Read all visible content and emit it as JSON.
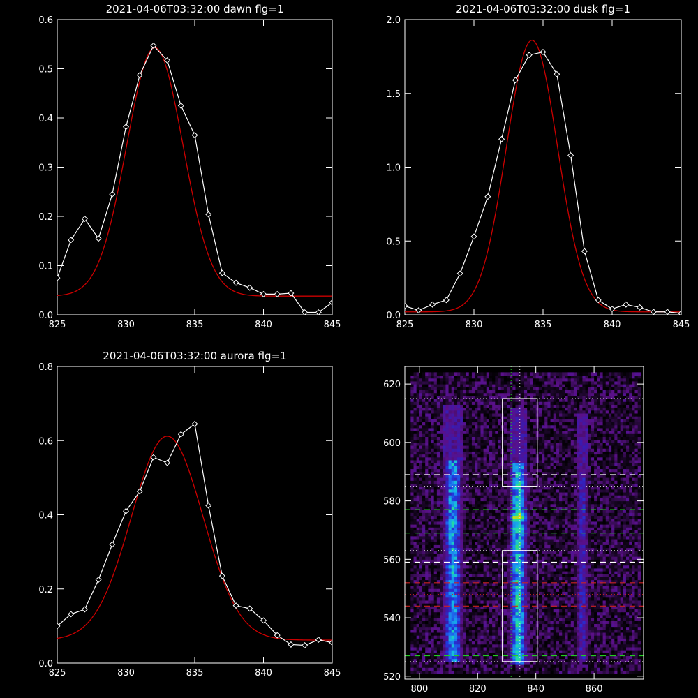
{
  "chart_data": [
    {
      "id": "dawn",
      "type": "line",
      "title": "2021-04-06T03:32:00 dawn flg=1",
      "xlabel": "",
      "ylabel": "",
      "xlim": [
        825,
        845
      ],
      "ylim": [
        0,
        0.6
      ],
      "xticks": [
        825,
        830,
        835,
        840,
        845
      ],
      "xtick_labels": [
        "825",
        "830",
        "835",
        "840",
        "845"
      ],
      "yticks": [
        0,
        0.1,
        0.2,
        0.3,
        0.4,
        0.5,
        0.6
      ],
      "ytick_labels": [
        "0.0",
        "0.1",
        "0.2",
        "0.3",
        "0.4",
        "0.5",
        "0.6"
      ],
      "series": [
        {
          "role": "data",
          "color": "#ffffff",
          "marker": "diamond",
          "x": [
            825,
            826,
            827,
            828,
            829,
            830,
            831,
            832,
            833,
            834,
            835,
            836,
            837,
            838,
            839,
            840,
            841,
            842,
            843,
            844,
            845
          ],
          "y": [
            0.075,
            0.152,
            0.195,
            0.155,
            0.245,
            0.382,
            0.487,
            0.547,
            0.517,
            0.425,
            0.365,
            0.204,
            0.085,
            0.065,
            0.055,
            0.042,
            0.042,
            0.044,
            0.005,
            0.005,
            0.025
          ]
        },
        {
          "role": "fit",
          "color": "#cc0000",
          "gauss": {
            "amp": 0.505,
            "center": 832.1,
            "sigma": 2.05,
            "base": 0.038
          }
        }
      ]
    },
    {
      "id": "dusk",
      "type": "line",
      "title": "2021-04-06T03:32:00 dusk flg=1",
      "xlabel": "",
      "ylabel": "",
      "xlim": [
        825,
        845
      ],
      "ylim": [
        0,
        2.0
      ],
      "xticks": [
        825,
        830,
        835,
        840,
        845
      ],
      "xtick_labels": [
        "825",
        "830",
        "835",
        "840",
        "845"
      ],
      "yticks": [
        0,
        0.5,
        1.0,
        1.5,
        2.0
      ],
      "ytick_labels": [
        "0.0",
        "0.5",
        "1.0",
        "1.5",
        "2.0"
      ],
      "series": [
        {
          "role": "data",
          "color": "#ffffff",
          "marker": "diamond",
          "x": [
            825,
            826,
            827,
            828,
            829,
            830,
            831,
            832,
            833,
            834,
            835,
            836,
            837,
            838,
            839,
            840,
            841,
            842,
            843,
            844,
            845
          ],
          "y": [
            0.06,
            0.03,
            0.07,
            0.1,
            0.28,
            0.53,
            0.8,
            1.19,
            1.59,
            1.76,
            1.78,
            1.63,
            1.08,
            0.43,
            0.1,
            0.04,
            0.07,
            0.05,
            0.02,
            0.02,
            0.01
          ]
        },
        {
          "role": "fit",
          "color": "#cc0000",
          "gauss": {
            "amp": 1.84,
            "center": 834.2,
            "sigma": 1.85,
            "base": 0.02
          }
        }
      ]
    },
    {
      "id": "aurora",
      "type": "line",
      "title": "2021-04-06T03:32:00 aurora flg=1",
      "xlabel": "",
      "ylabel": "",
      "xlim": [
        825,
        845
      ],
      "ylim": [
        0,
        0.8
      ],
      "xticks": [
        825,
        830,
        835,
        840,
        845
      ],
      "xtick_labels": [
        "825",
        "830",
        "835",
        "840",
        "845"
      ],
      "yticks": [
        0,
        0.2,
        0.4,
        0.6,
        0.8
      ],
      "ytick_labels": [
        "0.0",
        "0.2",
        "0.4",
        "0.6",
        "0.8"
      ],
      "series": [
        {
          "role": "data",
          "color": "#ffffff",
          "marker": "diamond",
          "x": [
            825,
            826,
            827,
            828,
            829,
            830,
            831,
            832,
            833,
            834,
            835,
            836,
            837,
            838,
            839,
            840,
            841,
            842,
            843,
            844,
            845
          ],
          "y": [
            0.1,
            0.132,
            0.145,
            0.225,
            0.32,
            0.41,
            0.463,
            0.555,
            0.54,
            0.617,
            0.645,
            0.425,
            0.235,
            0.155,
            0.147,
            0.115,
            0.075,
            0.05,
            0.048,
            0.063,
            0.055
          ]
        },
        {
          "role": "fit",
          "color": "#cc0000",
          "gauss": {
            "amp": 0.55,
            "center": 833.0,
            "sigma": 2.6,
            "base": 0.062
          }
        }
      ]
    },
    {
      "id": "image",
      "type": "heatmap",
      "xlim": [
        795,
        877
      ],
      "ylim": [
        519,
        626
      ],
      "xticks": [
        800,
        820,
        840,
        860
      ],
      "xtick_labels": [
        "800",
        "820",
        "840",
        "860"
      ],
      "yticks": [
        520,
        540,
        560,
        580,
        600,
        620
      ],
      "ytick_labels": [
        "520",
        "540",
        "560",
        "580",
        "600",
        "620"
      ],
      "colormap": [
        "#000000",
        "#2a0a40",
        "#5a1088",
        "#3a1ab0",
        "#1f3ae0",
        "#1e7ef0",
        "#16b4e6",
        "#20d8b0",
        "#3ce060",
        "#b8e020",
        "#f0d010",
        "#f07010",
        "#e81010"
      ],
      "emission_bands": [
        {
          "x_center": 811.5,
          "x_width": 6.5,
          "y_from": 525,
          "y_to": 593,
          "peak": 0.55,
          "hot_spots": [
            {
              "y": 528,
              "v": 0.55
            },
            {
              "y": 538,
              "v": 0.45
            },
            {
              "y": 555,
              "v": 0.45
            },
            {
              "y": 572,
              "v": 0.62
            },
            {
              "y": 585,
              "v": 0.42
            }
          ]
        },
        {
          "x_center": 834.0,
          "x_width": 6.0,
          "y_from": 524,
          "y_to": 592,
          "peak": 0.62,
          "hot_spots": [
            {
              "y": 526,
              "v": 0.68
            },
            {
              "y": 530,
              "v": 0.62
            },
            {
              "y": 538,
              "v": 0.6
            },
            {
              "y": 565,
              "v": 0.7
            },
            {
              "y": 570,
              "v": 0.78
            },
            {
              "y": 574,
              "v": 1.0
            },
            {
              "y": 580,
              "v": 0.58
            }
          ]
        },
        {
          "x_center": 856.0,
          "x_width": 4.5,
          "y_from": 525,
          "y_to": 590,
          "peak": 0.3,
          "hot_spots": []
        }
      ],
      "boxes": [
        {
          "x": [
            828.5,
            840.5
          ],
          "y": [
            585,
            615
          ],
          "color": "#ffffff"
        },
        {
          "x": [
            828.5,
            840.5
          ],
          "y": [
            525,
            563
          ],
          "color": "#ffffff"
        }
      ],
      "dashed_lines": [
        {
          "y": 589,
          "color": "#ffffff"
        },
        {
          "y": 577,
          "color": "#22cc22"
        },
        {
          "y": 569,
          "color": "#22cc22"
        },
        {
          "y": 559,
          "color": "#ffffff"
        },
        {
          "y": 552,
          "color": "#cc2222"
        },
        {
          "y": 544,
          "color": "#cc2222"
        },
        {
          "y": 527,
          "color": "#22cc22"
        }
      ],
      "dotted_hlines": [
        {
          "y": 615,
          "color": "#dddddd"
        },
        {
          "y": 585,
          "color": "#dddddd"
        },
        {
          "y": 563,
          "color": "#dddddd"
        },
        {
          "y": 548,
          "color": "#cc2222"
        },
        {
          "y": 525,
          "color": "#dddddd"
        }
      ],
      "dotted_vlines": [
        {
          "x": 831.5,
          "color": "#22cc22"
        },
        {
          "x": 834.5,
          "color": "#dddddd"
        }
      ]
    }
  ]
}
